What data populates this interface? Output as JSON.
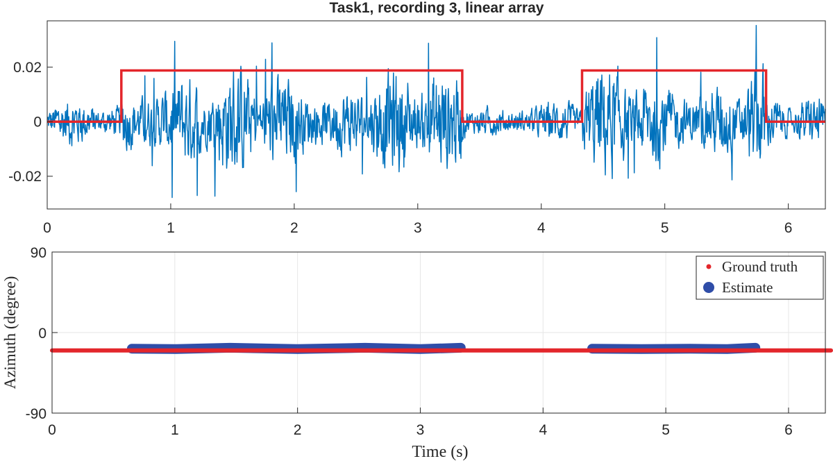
{
  "chart_data": [
    {
      "type": "line",
      "title": "Task1, recording 3, linear array",
      "xlabel": "",
      "ylabel": "",
      "xlim": [
        0,
        6.3
      ],
      "ylim": [
        -0.032,
        0.037
      ],
      "x_ticks": [
        0,
        1,
        2,
        3,
        4,
        5,
        6
      ],
      "x_tick_labels": [
        "0",
        "1",
        "2",
        "3",
        "4",
        "5",
        "6"
      ],
      "y_ticks": [
        -0.02,
        0,
        0.02
      ],
      "y_tick_labels": [
        "-0.02",
        "0",
        "0.02"
      ],
      "grid": false,
      "series": [
        {
          "kind": "waveform",
          "color": "#0072BD",
          "noise_amplitude_quiet": 0.005,
          "noise_amplitude_active": 0.011,
          "peak_max": 0.037,
          "peak_min": -0.032
        },
        {
          "kind": "step",
          "color": "#E3262B",
          "x": [
            0,
            0.6,
            0.6,
            3.36,
            3.36,
            4.33,
            4.33,
            5.82,
            5.82,
            6.3
          ],
          "y": [
            0,
            0,
            0.0188,
            0.0188,
            0,
            0,
            0.0188,
            0.0188,
            0,
            0
          ]
        }
      ]
    },
    {
      "type": "scatter",
      "title": "",
      "xlabel": "Time (s)",
      "ylabel": "Azimuth (degree)",
      "xlim": [
        0,
        6.3
      ],
      "ylim": [
        -90,
        90
      ],
      "x_ticks": [
        0,
        1,
        2,
        3,
        4,
        5,
        6
      ],
      "x_tick_labels": [
        "0",
        "1",
        "2",
        "3",
        "4",
        "5",
        "6"
      ],
      "y_ticks": [
        -90,
        0,
        90
      ],
      "y_tick_labels": [
        "-90",
        "0",
        "90"
      ],
      "grid": true,
      "legend_position": "top-right",
      "series": [
        {
          "name": "Estimate",
          "color": "#2F4DA8",
          "segments": [
            {
              "x": [
                0.65,
                1.0,
                1.45,
                2.0,
                2.55,
                3.0,
                3.33
              ],
              "y": [
                -18,
                -18.5,
                -17,
                -18.5,
                -17,
                -18.5,
                -17
              ]
            },
            {
              "x": [
                4.4,
                4.8,
                5.2,
                5.5,
                5.73
              ],
              "y": [
                -18,
                -18.5,
                -18,
                -18.5,
                -17
              ]
            }
          ]
        },
        {
          "name": "Ground truth",
          "color": "#E3262B",
          "x": [
            0,
            6.3
          ],
          "y": [
            -20,
            -20
          ]
        }
      ],
      "legend": [
        "Ground truth",
        "Estimate"
      ]
    }
  ]
}
